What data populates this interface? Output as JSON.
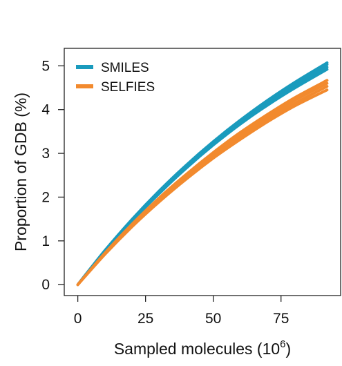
{
  "chart_data": {
    "type": "line",
    "xlabel": "Sampled molecules (10",
    "xlabel_sup": "6",
    "xlabel_close": ")",
    "ylabel": "Proportion of GDB (%)",
    "xlim": [
      -5,
      97
    ],
    "ylim": [
      -0.25,
      5.4
    ],
    "xticks": [
      0,
      25,
      50,
      75
    ],
    "xtick_labels": [
      "0",
      "25",
      "50",
      "75"
    ],
    "yticks": [
      0,
      1,
      2,
      3,
      4,
      5
    ],
    "ytick_labels": [
      "0",
      "1",
      "2",
      "3",
      "4",
      "5"
    ],
    "grid": false,
    "legend_position": "top-left",
    "series": [
      {
        "name": "SMILES",
        "color": "#1a9bbd",
        "runs": [
          {
            "x": [
              0,
              10,
              20,
              30,
              40,
              50,
              60,
              70,
              80,
              92
            ],
            "y": [
              0,
              0.78,
              1.49,
              2.14,
              2.73,
              3.27,
              3.76,
              4.21,
              4.62,
              5.07
            ]
          },
          {
            "x": [
              0,
              10,
              20,
              30,
              40,
              50,
              60,
              70,
              80,
              92
            ],
            "y": [
              0,
              0.77,
              1.47,
              2.12,
              2.71,
              3.25,
              3.74,
              4.19,
              4.59,
              5.03
            ]
          },
          {
            "x": [
              0,
              10,
              20,
              30,
              40,
              50,
              60,
              70,
              80,
              92
            ],
            "y": [
              0,
              0.76,
              1.46,
              2.1,
              2.68,
              3.21,
              3.7,
              4.14,
              4.54,
              4.97
            ]
          },
          {
            "x": [
              0,
              10,
              20,
              30,
              40,
              50,
              60,
              70,
              80,
              92
            ],
            "y": [
              0,
              0.76,
              1.45,
              2.08,
              2.66,
              3.19,
              3.67,
              4.1,
              4.49,
              4.92
            ]
          }
        ]
      },
      {
        "name": "SELFIES",
        "color": "#f28a2e",
        "runs": [
          {
            "x": [
              0,
              10,
              20,
              30,
              40,
              50,
              60,
              70,
              80,
              92
            ],
            "y": [
              0,
              0.72,
              1.38,
              1.98,
              2.52,
              3.02,
              3.48,
              3.89,
              4.27,
              4.67
            ]
          },
          {
            "x": [
              0,
              10,
              20,
              30,
              40,
              50,
              60,
              70,
              80,
              92
            ],
            "y": [
              0,
              0.71,
              1.36,
              1.95,
              2.49,
              2.98,
              3.43,
              3.84,
              4.21,
              4.6
            ]
          },
          {
            "x": [
              0,
              10,
              20,
              30,
              40,
              50,
              60,
              70,
              80,
              92
            ],
            "y": [
              0,
              0.7,
              1.34,
              1.92,
              2.45,
              2.93,
              3.37,
              3.78,
              4.14,
              4.53
            ]
          },
          {
            "x": [
              0,
              10,
              20,
              30,
              40,
              50,
              60,
              70,
              80,
              92
            ],
            "y": [
              0,
              0.69,
              1.32,
              1.89,
              2.41,
              2.89,
              3.32,
              3.72,
              4.08,
              4.45
            ]
          }
        ]
      }
    ]
  }
}
